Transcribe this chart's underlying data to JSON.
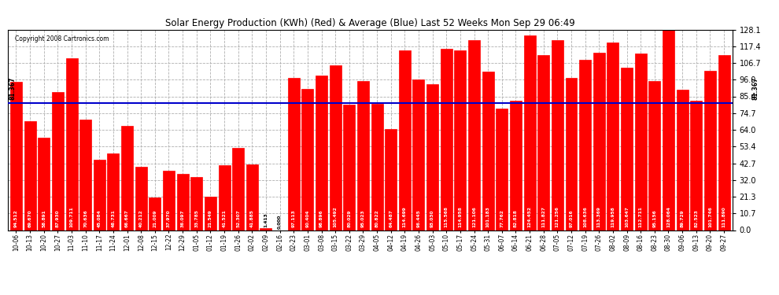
{
  "title": "Solar Energy Production (KWh) (Red) & Average (Blue) Last 52 Weeks Mon Sep 29 06:49",
  "copyright": "Copyright 2008 Cartronics.com",
  "bar_color": "#ff0000",
  "avg_line_color": "#0000cc",
  "avg_value": 81.367,
  "background_color": "#ffffff",
  "plot_bg_color": "#ffffff",
  "grid_color": "#b0b0b0",
  "yticks": [
    0.0,
    10.7,
    21.3,
    32.0,
    42.7,
    53.4,
    64.0,
    74.7,
    85.4,
    96.0,
    106.7,
    117.4,
    128.1
  ],
  "weeks": [
    "10-06",
    "10-13",
    "10-20",
    "10-27",
    "11-03",
    "11-10",
    "11-17",
    "11-24",
    "12-01",
    "12-08",
    "12-15",
    "12-22",
    "12-29",
    "01-05",
    "01-12",
    "01-19",
    "01-26",
    "02-02",
    "02-09",
    "02-16",
    "02-23",
    "03-01",
    "03-08",
    "03-15",
    "03-22",
    "03-29",
    "04-05",
    "04-12",
    "04-19",
    "04-26",
    "05-03",
    "05-10",
    "05-17",
    "05-24",
    "05-31",
    "06-07",
    "06-14",
    "06-21",
    "06-28",
    "07-05",
    "07-12",
    "07-19",
    "07-26",
    "08-02",
    "08-09",
    "08-16",
    "08-23",
    "08-30",
    "09-06",
    "09-13",
    "09-20",
    "09-27"
  ],
  "values": [
    94.512,
    69.67,
    58.891,
    87.93,
    109.711,
    70.636,
    45.084,
    48.731,
    66.667,
    40.212,
    21.009,
    37.97,
    36.097,
    33.785,
    21.549,
    41.521,
    52.307,
    41.885,
    1.413,
    0.0,
    97.113,
    90.404,
    98.896,
    105.492,
    80.029,
    95.023,
    80.822,
    64.487,
    114.699,
    96.445,
    93.03,
    115.568,
    114.958,
    121.106,
    101.183,
    77.762,
    82.818,
    124.452,
    111.827,
    121.256,
    97.016,
    108.636,
    113.369,
    119.958,
    103.647,
    112.711,
    95.156,
    128.064,
    89.729,
    82.523,
    101.746,
    111.89
  ]
}
